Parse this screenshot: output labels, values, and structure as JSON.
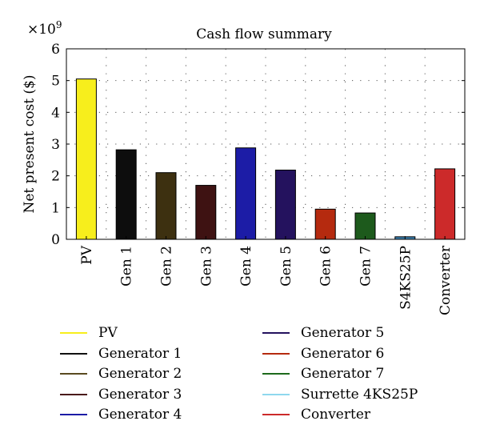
{
  "chart_data": {
    "type": "bar",
    "title": "Cash flow summary",
    "xlabel": "",
    "ylabel": "Net present cost ($)",
    "y_multiplier": "×10",
    "y_exponent": "9",
    "ylim": [
      0,
      6
    ],
    "yticks": [
      "0",
      "1",
      "2",
      "3",
      "4",
      "5",
      "6"
    ],
    "grid": "dotted",
    "categories": [
      "PV",
      "Gen 1",
      "Gen 2",
      "Gen 3",
      "Gen 4",
      "Gen 5",
      "Gen 6",
      "Gen 7",
      "S4KS25P",
      "Converter"
    ],
    "values": [
      5.05,
      2.82,
      2.1,
      1.7,
      2.88,
      2.18,
      0.95,
      0.83,
      0.08,
      2.22
    ],
    "colors": [
      "#f7ee1c",
      "#0d0d0d",
      "#3d3010",
      "#3e1212",
      "#1c1ca6",
      "#24125e",
      "#b52a0f",
      "#1d5a1c",
      "#3a7fb0",
      "#cc2a2a"
    ],
    "legend_position": "bottom",
    "legend": [
      {
        "label": "PV",
        "color": "#f7ee1c"
      },
      {
        "label": "Generator 1",
        "color": "#111111"
      },
      {
        "label": "Generator 2",
        "color": "#5a4a20"
      },
      {
        "label": "Generator 3",
        "color": "#4a1a1a"
      },
      {
        "label": "Generator 4",
        "color": "#1c1ca6"
      },
      {
        "label": "Generator 5",
        "color": "#24125e"
      },
      {
        "label": "Generator 6",
        "color": "#b52a0f"
      },
      {
        "label": "Generator 7",
        "color": "#1d6a1c"
      },
      {
        "label": "Surrette 4KS25P",
        "color": "#8fd8ee"
      },
      {
        "label": "Converter",
        "color": "#cc2a2a"
      }
    ]
  }
}
